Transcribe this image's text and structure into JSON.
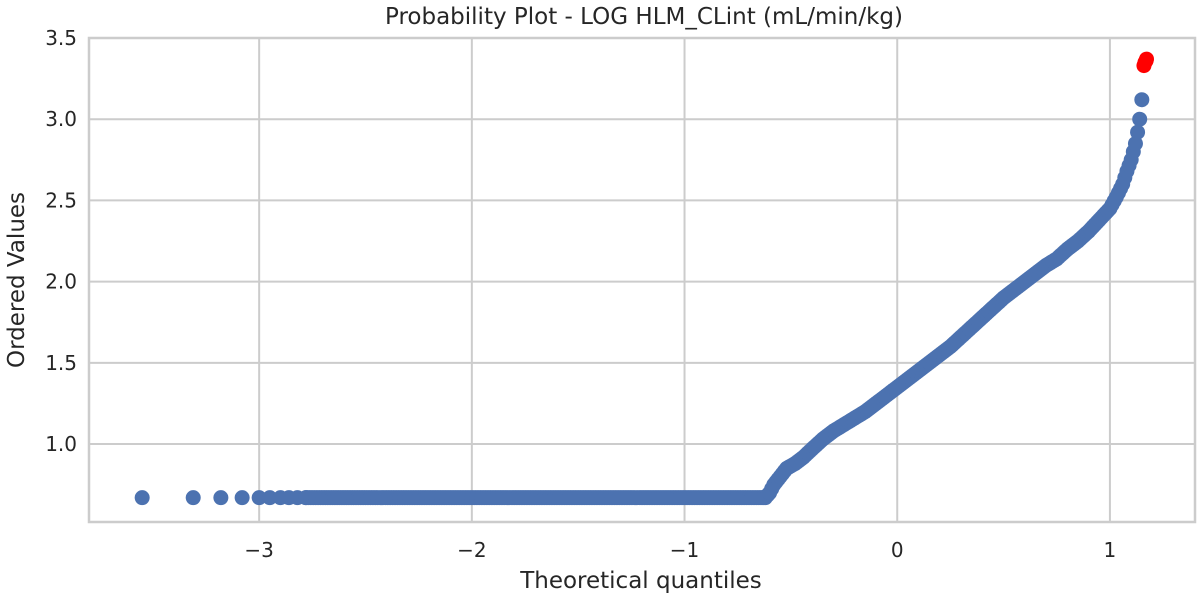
{
  "chart_data": {
    "type": "scatter",
    "title": "Probability Plot - LOG HLM_CLint (mL/min/kg)",
    "xlabel": "Theoretical quantiles",
    "ylabel": "Ordered Values",
    "xlim": [
      -3.8,
      1.4
    ],
    "ylim": [
      0.52,
      3.5
    ],
    "xticks": [
      -3,
      -2,
      -1,
      0,
      1
    ],
    "xtick_labels": [
      "−3",
      "−2",
      "−1",
      "0",
      "1"
    ],
    "yticks": [
      1.0,
      1.5,
      2.0,
      2.5,
      3.0,
      3.5
    ],
    "ytick_labels": [
      "1.0",
      "1.5",
      "2.0",
      "2.5",
      "3.0",
      "3.5"
    ],
    "grid": true,
    "colors": {
      "main": "#4c72b0",
      "outlier": "#ff0000",
      "grid": "#cccccc",
      "text": "#262626"
    },
    "series": [
      {
        "x": [
          -3.55,
          -3.31,
          -3.18,
          -3.08,
          -3.0,
          -2.95,
          -2.9,
          -2.86,
          -2.82,
          -2.78,
          -2.7,
          -2.6,
          -2.5,
          -2.35,
          -2.2,
          -2.0,
          -1.8,
          -1.6,
          -1.4,
          -1.2,
          -1.0,
          -0.8,
          -0.65,
          -0.62,
          -0.6,
          -0.58,
          -0.55,
          -0.52,
          -0.48,
          -0.44,
          -0.4,
          -0.35,
          -0.3,
          -0.25,
          -0.2,
          -0.15,
          -0.1,
          -0.05,
          0.0,
          0.05,
          0.1,
          0.15,
          0.2,
          0.25,
          0.3,
          0.35,
          0.4,
          0.45,
          0.5,
          0.55,
          0.6,
          0.65,
          0.7,
          0.75,
          0.8,
          0.85,
          0.9,
          0.95,
          1.0,
          1.03,
          1.06,
          1.08,
          1.1,
          1.12,
          1.13,
          1.14,
          1.15
        ],
        "y": [
          0.67,
          0.67,
          0.67,
          0.67,
          0.67,
          0.67,
          0.67,
          0.67,
          0.67,
          0.67,
          0.67,
          0.67,
          0.67,
          0.67,
          0.67,
          0.67,
          0.67,
          0.67,
          0.67,
          0.67,
          0.67,
          0.67,
          0.67,
          0.67,
          0.7,
          0.75,
          0.8,
          0.85,
          0.88,
          0.92,
          0.97,
          1.03,
          1.08,
          1.12,
          1.16,
          1.2,
          1.25,
          1.3,
          1.35,
          1.4,
          1.45,
          1.5,
          1.55,
          1.6,
          1.66,
          1.72,
          1.78,
          1.84,
          1.9,
          1.95,
          2.0,
          2.05,
          2.1,
          2.14,
          2.2,
          2.25,
          2.31,
          2.38,
          2.45,
          2.52,
          2.6,
          2.68,
          2.75,
          2.85,
          2.92,
          3.0,
          3.12
        ]
      },
      {
        "x": [
          1.16,
          1.165,
          1.17,
          1.172
        ],
        "y": [
          3.33,
          3.35,
          3.36,
          3.37
        ]
      }
    ]
  }
}
